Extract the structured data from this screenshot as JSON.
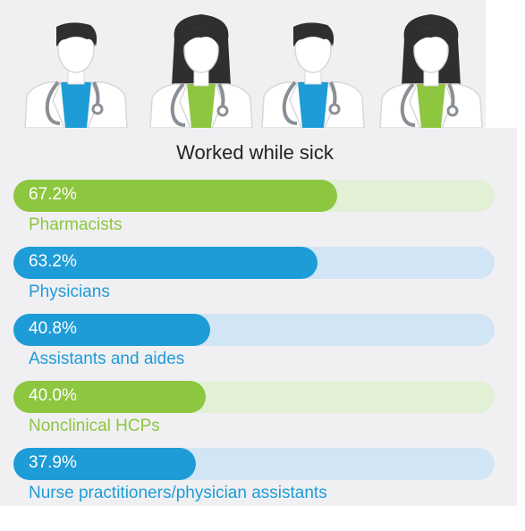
{
  "chart_data": {
    "type": "bar",
    "title": "Worked while sick",
    "categories": [
      "Pharmacists",
      "Physicians",
      "Assistants and aides",
      "Nonclinical HCPs",
      "Nurse practitioners/physician assistants"
    ],
    "values": [
      67.2,
      63.2,
      40.8,
      40.0,
      37.9
    ],
    "value_labels": [
      "67.2%",
      "63.2%",
      "40.8%",
      "40.0%",
      "37.9%"
    ],
    "xlim": [
      0,
      100
    ],
    "bar_colors": [
      "#8dc63f",
      "#1e9cd7",
      "#1e9cd7",
      "#8dc63f",
      "#1e9cd7"
    ],
    "track_colors": [
      "#e2f0d6",
      "#d2e5f5",
      "#d2e5f5",
      "#e2f0d6",
      "#d2e5f5"
    ]
  },
  "figures": {
    "icons": [
      "male-doctor-icon",
      "female-doctor-icon",
      "male-doctor-icon",
      "female-doctor-icon"
    ],
    "colors": {
      "hair": "#2f2f2f",
      "skin": "#ffffff",
      "coat": "#ffffff",
      "coat_outline": "#d8d8d8",
      "male_shirt": "#1e9cd7",
      "female_shirt": "#8dc63f",
      "stethoscope": "#8a8f96"
    }
  }
}
